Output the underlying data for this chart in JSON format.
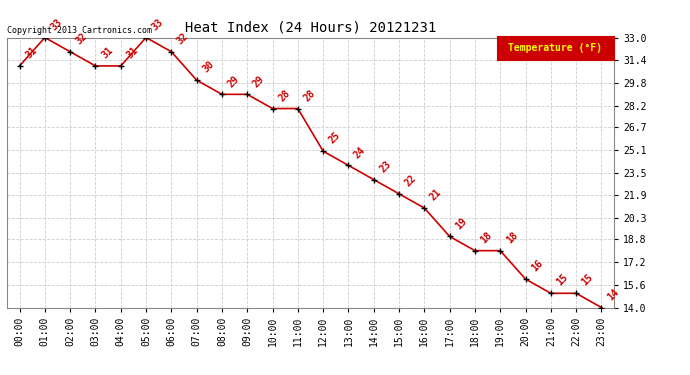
{
  "title": "Heat Index (24 Hours) 20121231",
  "copyright": "Copyright 2013 Cartronics.com",
  "legend_label": "Temperature (°F)",
  "x_labels": [
    "00:00",
    "01:00",
    "02:00",
    "03:00",
    "04:00",
    "05:00",
    "06:00",
    "07:00",
    "08:00",
    "09:00",
    "10:00",
    "11:00",
    "12:00",
    "13:00",
    "14:00",
    "15:00",
    "16:00",
    "17:00",
    "18:00",
    "19:00",
    "20:00",
    "21:00",
    "22:00",
    "23:00"
  ],
  "hours": [
    0,
    1,
    2,
    3,
    4,
    5,
    6,
    7,
    8,
    9,
    10,
    11,
    12,
    13,
    14,
    15,
    16,
    17,
    18,
    19,
    20,
    21,
    22,
    23
  ],
  "values": [
    31,
    33,
    32,
    31,
    31,
    33,
    32,
    30,
    29,
    29,
    28,
    28,
    25,
    24,
    23,
    22,
    21,
    19,
    18,
    18,
    16,
    15,
    15,
    14
  ],
  "ylim_min": 14.0,
  "ylim_max": 33.0,
  "yticks": [
    14.0,
    15.6,
    17.2,
    18.8,
    20.3,
    21.9,
    23.5,
    25.1,
    26.7,
    28.2,
    29.8,
    31.4,
    33.0
  ],
  "line_color": "#cc0000",
  "marker_color": "#000000",
  "bg_color": "#ffffff",
  "grid_color": "#c8c8c8",
  "label_color": "#cc0000",
  "title_color": "#000000",
  "legend_bg": "#cc0000",
  "legend_text_color": "#ffff00",
  "title_fontsize": 10,
  "tick_fontsize": 7,
  "label_fontsize": 7,
  "copyright_fontsize": 6
}
